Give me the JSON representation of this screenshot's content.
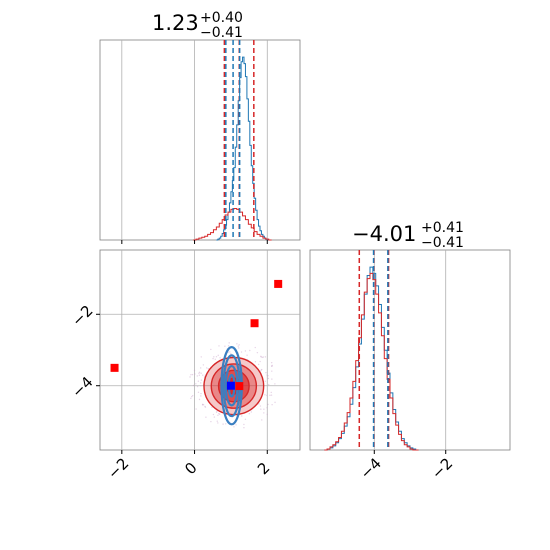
{
  "chart_data": [
    {
      "type": "histogram",
      "panel": "marginal-x",
      "title": "1.23",
      "title_upper": "+0.40",
      "title_lower": "−0.41",
      "xlim": [
        -2.6,
        2.9
      ],
      "x_ticks": [
        -2,
        0,
        2
      ],
      "grid": true,
      "series": [
        {
          "color": "#1f77b4",
          "bin_start": 0.6,
          "bin_width": 0.04,
          "counts": [
            0,
            1,
            2,
            4,
            7,
            11,
            16,
            22,
            30,
            40,
            52,
            64,
            78,
            100,
            124,
            150,
            175,
            192,
            197,
            190,
            176,
            152,
            128,
            102,
            80,
            61,
            45,
            32,
            22,
            15,
            10,
            6,
            4,
            2,
            1,
            0
          ]
        },
        {
          "color": "#d62728",
          "bin_start": -0.04,
          "bin_width": 0.08,
          "counts": [
            0,
            1,
            2,
            3,
            4,
            6,
            8,
            11,
            14,
            18,
            22,
            27,
            30,
            33,
            34,
            33,
            30,
            26,
            22,
            17,
            13,
            9,
            6,
            4,
            2,
            1,
            0
          ]
        }
      ],
      "vlines": [
        {
          "x": 0.82,
          "color": "#d62728"
        },
        {
          "x": 1.23,
          "color": "#d62728"
        },
        {
          "x": 1.63,
          "color": "#d62728"
        },
        {
          "x": 0.86,
          "color": "#1f77b4"
        },
        {
          "x": 1.06,
          "color": "#1f77b4"
        },
        {
          "x": 1.24,
          "color": "#1f77b4"
        }
      ]
    },
    {
      "type": "contour",
      "panel": "joint",
      "xlim": [
        -2.6,
        2.9
      ],
      "ylim": [
        -5.8,
        -0.2
      ],
      "x_ticks": [
        -2,
        0,
        2
      ],
      "y_ticks": [
        -4,
        -2
      ],
      "grid": true,
      "red_contours": {
        "center": [
          1.08,
          -4.01
        ],
        "levels": [
          {
            "rx": 0.2,
            "ry": 0.22,
            "fill": "#d62728",
            "opacity": 0.85
          },
          {
            "rx": 0.42,
            "ry": 0.44,
            "fill": "#d62728",
            "opacity": 0.6
          },
          {
            "rx": 0.62,
            "ry": 0.62,
            "fill": "#d62728",
            "opacity": 0.4
          },
          {
            "rx": 0.82,
            "ry": 0.8,
            "fill": "#d62728",
            "opacity": 0.25
          }
        ]
      },
      "blue_contours": {
        "center": [
          1.02,
          -4.0
        ],
        "levels": [
          {
            "rx": 0.08,
            "ry": 0.3
          },
          {
            "rx": 0.16,
            "ry": 0.55
          },
          {
            "rx": 0.22,
            "ry": 0.85
          },
          {
            "rx": 0.28,
            "ry": 1.08
          }
        ],
        "color": "#3a7fc1"
      },
      "markers": [
        {
          "x": -2.2,
          "y": -3.5,
          "color": "#ff0000"
        },
        {
          "x": 1.65,
          "y": -2.25,
          "color": "#ff0000"
        },
        {
          "x": 2.3,
          "y": -1.15,
          "color": "#ff0000"
        },
        {
          "x": 1.23,
          "y": -4.01,
          "color": "#ff0000"
        },
        {
          "x": 1.0,
          "y": -4.0,
          "color": "#0000ff"
        }
      ]
    },
    {
      "type": "histogram",
      "panel": "marginal-y",
      "title": "−4.01",
      "title_upper": "+0.41",
      "title_lower": "−0.41",
      "xlim": [
        -5.8,
        -0.2
      ],
      "x_ticks": [
        -4,
        -2
      ],
      "grid": true,
      "series": [
        {
          "color": "#1f77b4",
          "bin_start": -5.4,
          "bin_width": 0.08,
          "counts": [
            0,
            1,
            2,
            4,
            7,
            11,
            16,
            23,
            32,
            44,
            60,
            80,
            102,
            126,
            150,
            168,
            176,
            170,
            158,
            140,
            118,
            96,
            74,
            55,
            39,
            27,
            18,
            11,
            7,
            4,
            2,
            1,
            0
          ]
        },
        {
          "color": "#d62728",
          "bin_start": -5.4,
          "bin_width": 0.08,
          "counts": [
            0,
            1,
            3,
            5,
            8,
            12,
            18,
            26,
            36,
            50,
            66,
            86,
            108,
            130,
            152,
            165,
            170,
            164,
            150,
            132,
            110,
            88,
            68,
            50,
            35,
            24,
            15,
            9,
            5,
            3,
            1,
            0,
            0
          ]
        }
      ],
      "vlines": [
        {
          "x": -4.42,
          "color": "#d62728"
        },
        {
          "x": -4.01,
          "color": "#d62728"
        },
        {
          "x": -3.6,
          "color": "#d62728"
        },
        {
          "x": -4.02,
          "color": "#1f77b4"
        },
        {
          "x": -3.62,
          "color": "#1f77b4"
        }
      ]
    }
  ]
}
